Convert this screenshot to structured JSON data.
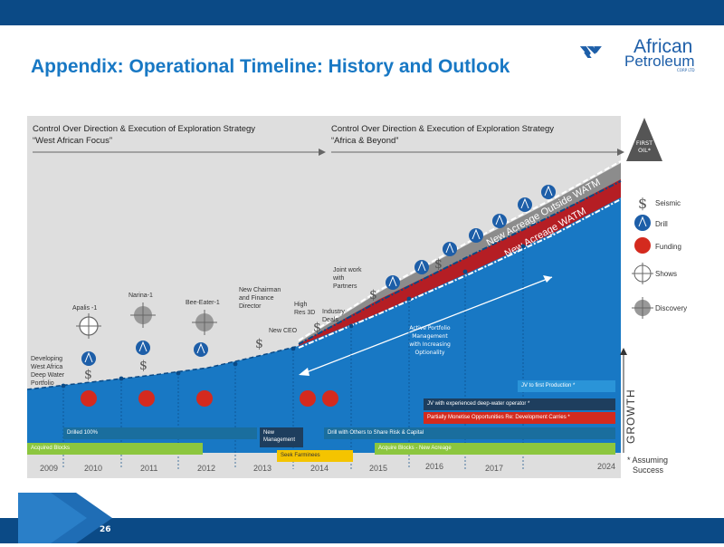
{
  "header": {
    "title": "Appendix: Operational Timeline: History and Outlook"
  },
  "logo": {
    "line1": "African",
    "line2": "Petroleum",
    "tag": "CORP LTD"
  },
  "phases": [
    {
      "line1": "Control Over Direction & Execution of Exploration Strategy",
      "line2": "“West African Focus”"
    },
    {
      "line1": "Control Over Direction & Execution of Exploration Strategy",
      "line2": "“Africa & Beyond”"
    }
  ],
  "first_oil": {
    "line1": "FIRST",
    "line2": "OIL*"
  },
  "wedges": {
    "outside": "New Acreage Outside WATM",
    "new": "New Acreage WATM"
  },
  "milestones": {
    "developing": [
      "Developing",
      "West Africa",
      "Deep Water",
      "Portfolio"
    ],
    "apalis": "Apalis -1",
    "narina": "Narina-1",
    "bee_eater": "Bee-Eater-1",
    "chairman": [
      "New Chairman",
      "and Finance",
      "Director"
    ],
    "ceo": "New CEO",
    "high_res": [
      "High",
      "Res 3D"
    ],
    "industry": [
      "Industry",
      "Deals"
    ],
    "joint_work": [
      "Joint work",
      "with",
      "Partners"
    ]
  },
  "active_portfolio": [
    "Active Portfolio",
    "Management",
    "with Increasing",
    "Optionality"
  ],
  "bars": {
    "jv_first": "JV to first Production *",
    "jv_experienced": "JV with experienced deep-water operator *",
    "partially": "Partially Monetise Opportunities Re: Development Carries *",
    "drilled": "Drilled 100%",
    "new_mgmt": [
      "New",
      "Management"
    ],
    "drill_others": "Drill with Others to Share Risk & Capital",
    "acquired": "Acquired Blocks",
    "acquire_new": "Acquire Blocks - New Acreage",
    "seek": "Seek Farminees"
  },
  "years": [
    "2009",
    "2010",
    "2011",
    "2012",
    "2013",
    "2014",
    "2015",
    "2016",
    "2017",
    "2024"
  ],
  "legend": [
    "Seismic",
    "Drill",
    "Funding",
    "Shows",
    "Discovery"
  ],
  "growth": "GROWTH",
  "footnote": [
    "* Assuming",
    "Success"
  ],
  "page_number": "26",
  "colors": {
    "blue": "#1878c4",
    "navy": "#0b4a86",
    "red": "#d42a1e",
    "green": "#8cc63f",
    "yellow": "#f4c400",
    "teal": "#1a6e9e",
    "gray": "#888888"
  }
}
